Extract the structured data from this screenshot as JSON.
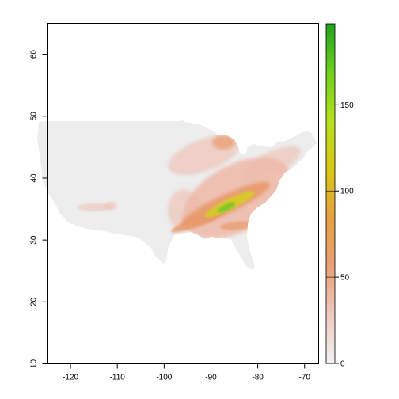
{
  "map": {
    "x_axis": {
      "range": [
        -125,
        -67
      ],
      "ticks": [
        {
          "value": -120,
          "label": "-120"
        },
        {
          "value": -110,
          "label": "-110"
        },
        {
          "value": -100,
          "label": "-100"
        },
        {
          "value": -90,
          "label": "-90"
        },
        {
          "value": -80,
          "label": "-80"
        },
        {
          "value": -70,
          "label": "-70"
        }
      ]
    },
    "y_axis": {
      "range": [
        10,
        65
      ],
      "ticks": [
        {
          "value": 10,
          "label": "10"
        },
        {
          "value": 20,
          "label": "20"
        },
        {
          "value": 30,
          "label": "30"
        },
        {
          "value": 40,
          "label": "40"
        },
        {
          "value": 50,
          "label": "50"
        },
        {
          "value": 60,
          "label": "60"
        }
      ]
    },
    "legend": {
      "placement": "right",
      "range": [
        0,
        197
      ],
      "ticks": [
        {
          "value": 0,
          "label": "0"
        },
        {
          "value": 50,
          "label": "50"
        },
        {
          "value": 100,
          "label": "100"
        },
        {
          "value": 150,
          "label": "150"
        }
      ],
      "color_stops": [
        "#f2f2f2",
        "#eec9c0",
        "#e8a075",
        "#e6a040",
        "#d9c812",
        "#b6e11a",
        "#6ecf1c",
        "#1fa31c"
      ]
    },
    "colors": {
      "land_zero": "#ededed",
      "low": "#eeb9a9",
      "mid": "#e89a6a",
      "high": "#d7ca2a",
      "peak": "#79c72a"
    }
  }
}
